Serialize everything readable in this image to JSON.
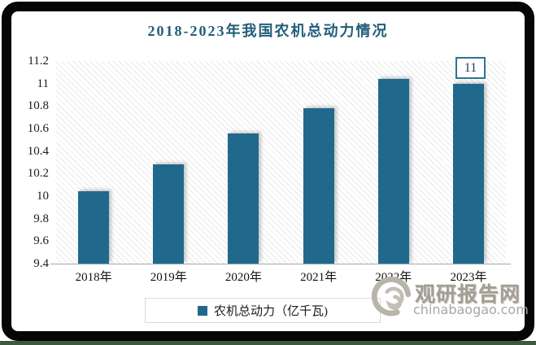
{
  "title": {
    "text": "2018-2023年我国农机总动力情况",
    "color": "#215e79"
  },
  "chart_data": {
    "type": "bar",
    "title": "2018-2023年我国农机总动力情况",
    "categories": [
      "2018年",
      "2019年",
      "2020年",
      "2021年",
      "2022年",
      "2023年"
    ],
    "series": [
      {
        "name": "农机总动力（亿千瓦)",
        "values": [
          10.04,
          10.28,
          10.56,
          10.78,
          11.04,
          11
        ]
      }
    ],
    "ylim": [
      9.4,
      11.2
    ],
    "ytick_step": 0.2,
    "yticks": [
      "11.2",
      "11",
      "10.8",
      "10.6",
      "10.4",
      "10.2",
      "10",
      "9.8",
      "9.6",
      "9.4"
    ],
    "xlabel": "",
    "ylabel": "",
    "grid": false,
    "legend_position": "bottom",
    "bar_color": "#20698c",
    "plot_background": "diagonal-hatch",
    "data_label": {
      "category": "2023年",
      "text": "11"
    }
  },
  "legend": {
    "label": "农机总动力（亿千瓦)",
    "marker_color": "#20698c"
  },
  "annotation": {
    "text": "11"
  },
  "watermark": {
    "cn": "观研报告网",
    "en": "chinabaogao.com"
  },
  "colors": {
    "frame": "#060606",
    "bottom_strip": "#3b5a41",
    "axis_line": "#a8a8a8",
    "legend_border": "#d9d9d9",
    "data_label_border": "#2d7493"
  }
}
